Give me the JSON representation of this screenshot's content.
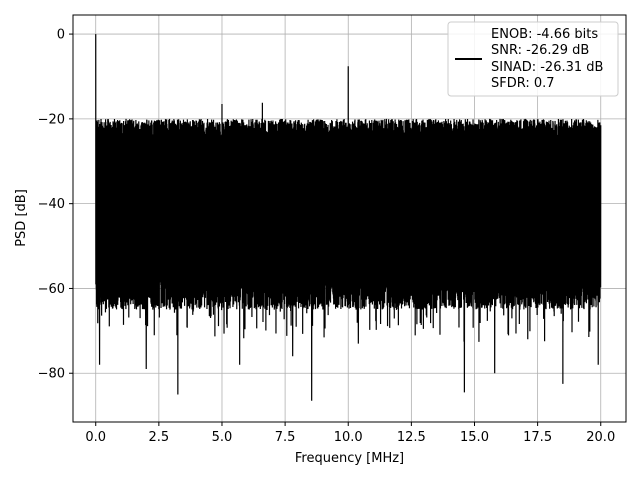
{
  "chart_data": {
    "type": "line",
    "xlabel": "Frequency [MHz]",
    "ylabel": "PSD [dB]",
    "xlim": [
      -0.9,
      21.0
    ],
    "ylim": [
      -91.5,
      4.5
    ],
    "xticks": [
      0.0,
      2.5,
      5.0,
      7.5,
      10.0,
      12.5,
      15.0,
      17.5,
      20.0
    ],
    "xtick_labels": [
      "0.0",
      "2.5",
      "5.0",
      "7.5",
      "10.0",
      "12.5",
      "15.0",
      "17.5",
      "20.0"
    ],
    "yticks": [
      0,
      -20,
      -40,
      -60,
      -80
    ],
    "ytick_labels": [
      "0",
      "−20",
      "−40",
      "−60",
      "−80"
    ],
    "grid": true,
    "legend_position": "top-right",
    "series": [
      {
        "name": "ENOB: -4.66 bits\nSNR: -26.29 dB\nSINAD: -26.31 dB\nSFDR: 0.7",
        "color": "#000000",
        "x_range": [
          0.0,
          20.0
        ],
        "noise_top_db": -22,
        "noise_bottom_db": -62,
        "peaks": [
          {
            "x": 0.0,
            "y": 0.0
          },
          {
            "x": 5.0,
            "y": -16.5
          },
          {
            "x": 6.6,
            "y": -16.2
          },
          {
            "x": 10.0,
            "y": -7.6
          }
        ],
        "dips": [
          {
            "x": 0.15,
            "y": -78
          },
          {
            "x": 2.0,
            "y": -79
          },
          {
            "x": 3.25,
            "y": -85
          },
          {
            "x": 5.7,
            "y": -78
          },
          {
            "x": 7.8,
            "y": -76
          },
          {
            "x": 8.55,
            "y": -86.5
          },
          {
            "x": 10.4,
            "y": -73
          },
          {
            "x": 14.6,
            "y": -84.5
          },
          {
            "x": 15.8,
            "y": -80
          },
          {
            "x": 18.5,
            "y": -82.5
          },
          {
            "x": 19.9,
            "y": -78
          }
        ]
      }
    ],
    "legend_lines": [
      "ENOB: -4.66 bits",
      "SNR: -26.29 dB",
      "SINAD: -26.31 dB",
      "SFDR: 0.7"
    ]
  }
}
